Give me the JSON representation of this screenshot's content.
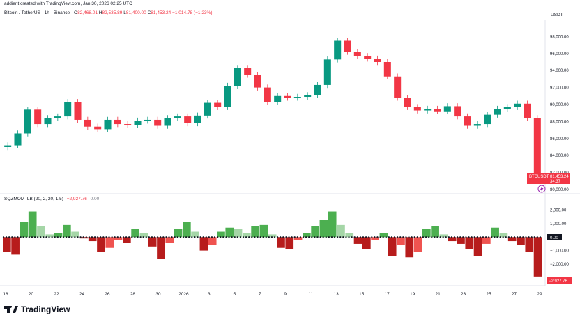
{
  "header": {
    "created_by": "addient created with TradingView.com, Jan 30, 2026 02:25 UTC",
    "symbol": "Bitcoin / TetherUS · 1h · Binance",
    "o_label": "O",
    "o_value": "82,468.01",
    "h_label": "H",
    "h_value": "82,535.89",
    "l_label": "L",
    "l_value": "81,400.00",
    "c_label": "C",
    "c_value": "81,453.24",
    "change": "−1,014.78 (−1.23%)",
    "currency": "USDT"
  },
  "indicator": {
    "name": "SQZMOM_LB (20, 2, 20, 1.5)",
    "value1": "−2,927.76",
    "value2": "0.00"
  },
  "price_tag": {
    "symbol": "BTCUSDT",
    "price": "81,453.24",
    "countdown": "34:37"
  },
  "momentum_tag": {
    "zero": "0.00",
    "value": "−2,927.76"
  },
  "brand": {
    "name": "TradingView"
  },
  "colors": {
    "up": "#089981",
    "down": "#f23645",
    "mom_up_strong": "#4caf50",
    "mom_down_strong": "#b71c1c"
  },
  "chart_data": [
    {
      "type": "line",
      "title": "Bitcoin / TetherUS · 1h · Binance",
      "ylabel": "USDT",
      "ylim": [
        80000,
        100000
      ],
      "y_ticks": [
        "98,000.00",
        "96,000.00",
        "94,000.00",
        "92,000.00",
        "90,000.00",
        "88,000.00",
        "86,000.00",
        "84,000.00",
        "82,000.00",
        "80,000.00"
      ],
      "x_ticks": [
        "18",
        "20",
        "22",
        "24",
        "26",
        "28",
        "30",
        "2026",
        "3",
        "5",
        "7",
        "9",
        "11",
        "13",
        "15",
        "17",
        "19",
        "21",
        "23",
        "25",
        "27",
        "29"
      ],
      "series": [
        {
          "values": [
            85200,
            86600,
            89400,
            87700,
            88400,
            88600,
            90300,
            88200,
            87400,
            87100,
            88200,
            87700,
            87600,
            88100,
            88200,
            87500,
            88400,
            88600,
            87800,
            88700,
            90200,
            89700,
            92200,
            94300,
            93500,
            92000,
            90300,
            91000,
            90800,
            90900,
            91100,
            92300,
            95300,
            97500,
            96200,
            95700,
            95400,
            95000,
            93300,
            90800,
            89700,
            89300,
            89500,
            89200,
            89800,
            88600,
            87500,
            87700,
            88800,
            89500,
            89700,
            90100,
            88400,
            81453
          ]
        }
      ]
    },
    {
      "type": "bar",
      "title": "SQZMOM_LB (20, 2, 20, 1.5)",
      "ylim": [
        -3400,
        2600
      ],
      "y_ticks": [
        "2,000.00",
        "1,000.00",
        "0.00",
        "−1,000.00",
        "−2,000.00"
      ],
      "series": [
        {
          "values": [
            -1100,
            -1300,
            1100,
            1900,
            800,
            200,
            300,
            900,
            400,
            -100,
            -300,
            -1100,
            -800,
            -200,
            -400,
            600,
            300,
            -700,
            -1600,
            -400,
            600,
            1100,
            400,
            -1000,
            -600,
            400,
            700,
            600,
            300,
            800,
            900,
            200,
            -800,
            -900,
            -200,
            300,
            800,
            1300,
            1900,
            900,
            300,
            -500,
            -900,
            -200,
            300,
            -1400,
            -600,
            -1500,
            -1100,
            600,
            800,
            200,
            -300,
            -500,
            -900,
            -1400,
            -500,
            700,
            300,
            -300,
            -600,
            -1100,
            -2927
          ]
        }
      ]
    }
  ]
}
